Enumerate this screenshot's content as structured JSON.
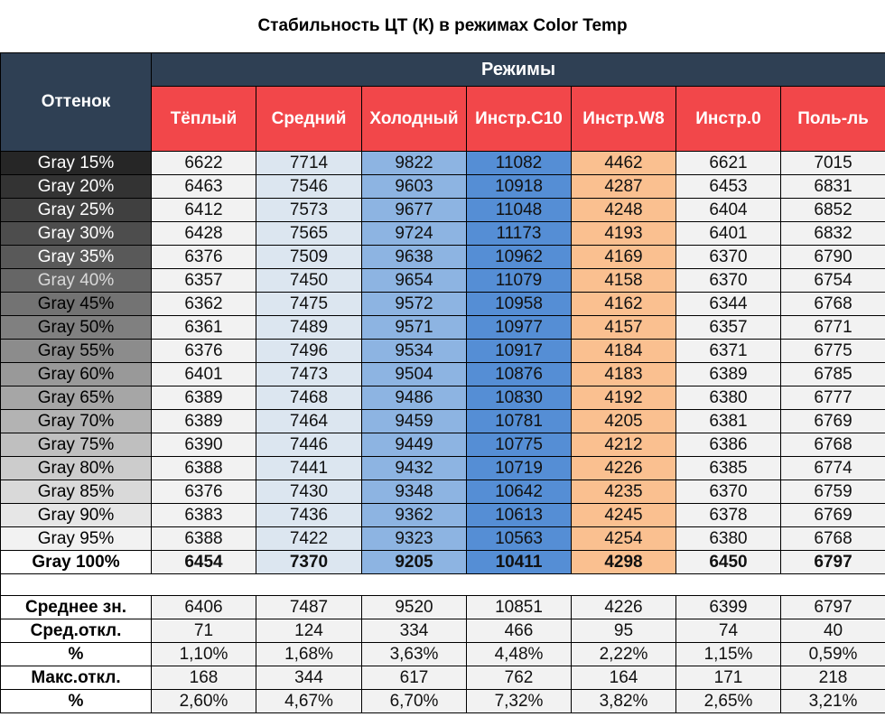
{
  "title": "Стабильность ЦТ (К) в режимах Color Temp",
  "header": {
    "shade_label": "Оттенок",
    "modes_label": "Режимы",
    "modes": [
      "Тёплый",
      "Средний",
      "Холодный",
      "Инстр.C10",
      "Инстр.W8",
      "Инстр.0",
      "Поль-ль"
    ]
  },
  "colors": {
    "header_dark": "#2f4054",
    "header_red": "#f2474a",
    "columns": [
      "#f2f2f2",
      "#dce6f0",
      "#8db4e2",
      "#558ed5",
      "#fac090",
      "#f2f2f2",
      "#f2f2f2"
    ]
  },
  "rows": [
    {
      "label": "Gray 15%",
      "bg": "#262626",
      "fg": "#ffffff",
      "values": [
        "6622",
        "7714",
        "9822",
        "11082",
        "4462",
        "6621",
        "7015"
      ]
    },
    {
      "label": "Gray 20%",
      "bg": "#333333",
      "fg": "#ffffff",
      "values": [
        "6463",
        "7546",
        "9603",
        "10918",
        "4287",
        "6453",
        "6831"
      ]
    },
    {
      "label": "Gray 25%",
      "bg": "#404040",
      "fg": "#ffffff",
      "values": [
        "6412",
        "7573",
        "9677",
        "11048",
        "4248",
        "6404",
        "6852"
      ]
    },
    {
      "label": "Gray 30%",
      "bg": "#4d4d4d",
      "fg": "#ffffff",
      "values": [
        "6428",
        "7565",
        "9724",
        "11173",
        "4193",
        "6401",
        "6832"
      ]
    },
    {
      "label": "Gray 35%",
      "bg": "#595959",
      "fg": "#ffffff",
      "values": [
        "6376",
        "7509",
        "9638",
        "10962",
        "4169",
        "6370",
        "6790"
      ]
    },
    {
      "label": "Gray 40%",
      "bg": "#666666",
      "fg": "#d9d9d9",
      "values": [
        "6357",
        "7450",
        "9654",
        "11079",
        "4158",
        "6370",
        "6754"
      ]
    },
    {
      "label": "Gray 45%",
      "bg": "#737373",
      "fg": "#000000",
      "values": [
        "6362",
        "7475",
        "9572",
        "10958",
        "4162",
        "6344",
        "6768"
      ]
    },
    {
      "label": "Gray 50%",
      "bg": "#808080",
      "fg": "#000000",
      "values": [
        "6361",
        "7489",
        "9571",
        "10977",
        "4157",
        "6357",
        "6771"
      ]
    },
    {
      "label": "Gray 55%",
      "bg": "#8c8c8c",
      "fg": "#000000",
      "values": [
        "6376",
        "7496",
        "9534",
        "10917",
        "4184",
        "6371",
        "6775"
      ]
    },
    {
      "label": "Gray 60%",
      "bg": "#999999",
      "fg": "#000000",
      "values": [
        "6401",
        "7473",
        "9504",
        "10876",
        "4183",
        "6389",
        "6785"
      ]
    },
    {
      "label": "Gray 65%",
      "bg": "#a6a6a6",
      "fg": "#000000",
      "values": [
        "6389",
        "7468",
        "9486",
        "10830",
        "4192",
        "6380",
        "6777"
      ]
    },
    {
      "label": "Gray 70%",
      "bg": "#b3b3b3",
      "fg": "#000000",
      "values": [
        "6389",
        "7464",
        "9459",
        "10781",
        "4205",
        "6381",
        "6769"
      ]
    },
    {
      "label": "Gray 75%",
      "bg": "#bfbfbf",
      "fg": "#000000",
      "values": [
        "6390",
        "7446",
        "9449",
        "10775",
        "4212",
        "6386",
        "6768"
      ]
    },
    {
      "label": "Gray 80%",
      "bg": "#cccccc",
      "fg": "#000000",
      "values": [
        "6388",
        "7441",
        "9432",
        "10719",
        "4226",
        "6385",
        "6774"
      ]
    },
    {
      "label": "Gray 85%",
      "bg": "#d9d9d9",
      "fg": "#000000",
      "values": [
        "6376",
        "7430",
        "9348",
        "10642",
        "4235",
        "6370",
        "6759"
      ]
    },
    {
      "label": "Gray 90%",
      "bg": "#e6e6e6",
      "fg": "#000000",
      "values": [
        "6383",
        "7436",
        "9362",
        "10613",
        "4245",
        "6378",
        "6769"
      ]
    },
    {
      "label": "Gray 95%",
      "bg": "#f2f2f2",
      "fg": "#000000",
      "values": [
        "6388",
        "7422",
        "9323",
        "10563",
        "4254",
        "6380",
        "6768"
      ]
    },
    {
      "label": "Gray 100%",
      "bg": "#ffffff",
      "fg": "#000000",
      "bold": true,
      "values": [
        "6454",
        "7370",
        "9205",
        "10411",
        "4298",
        "6450",
        "6797"
      ]
    }
  ],
  "stats": [
    {
      "label": "Среднее зн.",
      "values": [
        "6406",
        "7487",
        "9520",
        "10851",
        "4226",
        "6399",
        "6797"
      ]
    },
    {
      "label": "Сред.откл.",
      "values": [
        "71",
        "124",
        "334",
        "466",
        "95",
        "74",
        "40"
      ]
    },
    {
      "label": "%",
      "values": [
        "1,10%",
        "1,68%",
        "3,63%",
        "4,48%",
        "2,22%",
        "1,15%",
        "0,59%"
      ]
    },
    {
      "label": "Макс.откл.",
      "values": [
        "168",
        "344",
        "617",
        "762",
        "164",
        "171",
        "218"
      ]
    },
    {
      "label": "%",
      "values": [
        "2,60%",
        "4,67%",
        "6,70%",
        "7,32%",
        "3,82%",
        "2,65%",
        "3,21%"
      ]
    }
  ]
}
